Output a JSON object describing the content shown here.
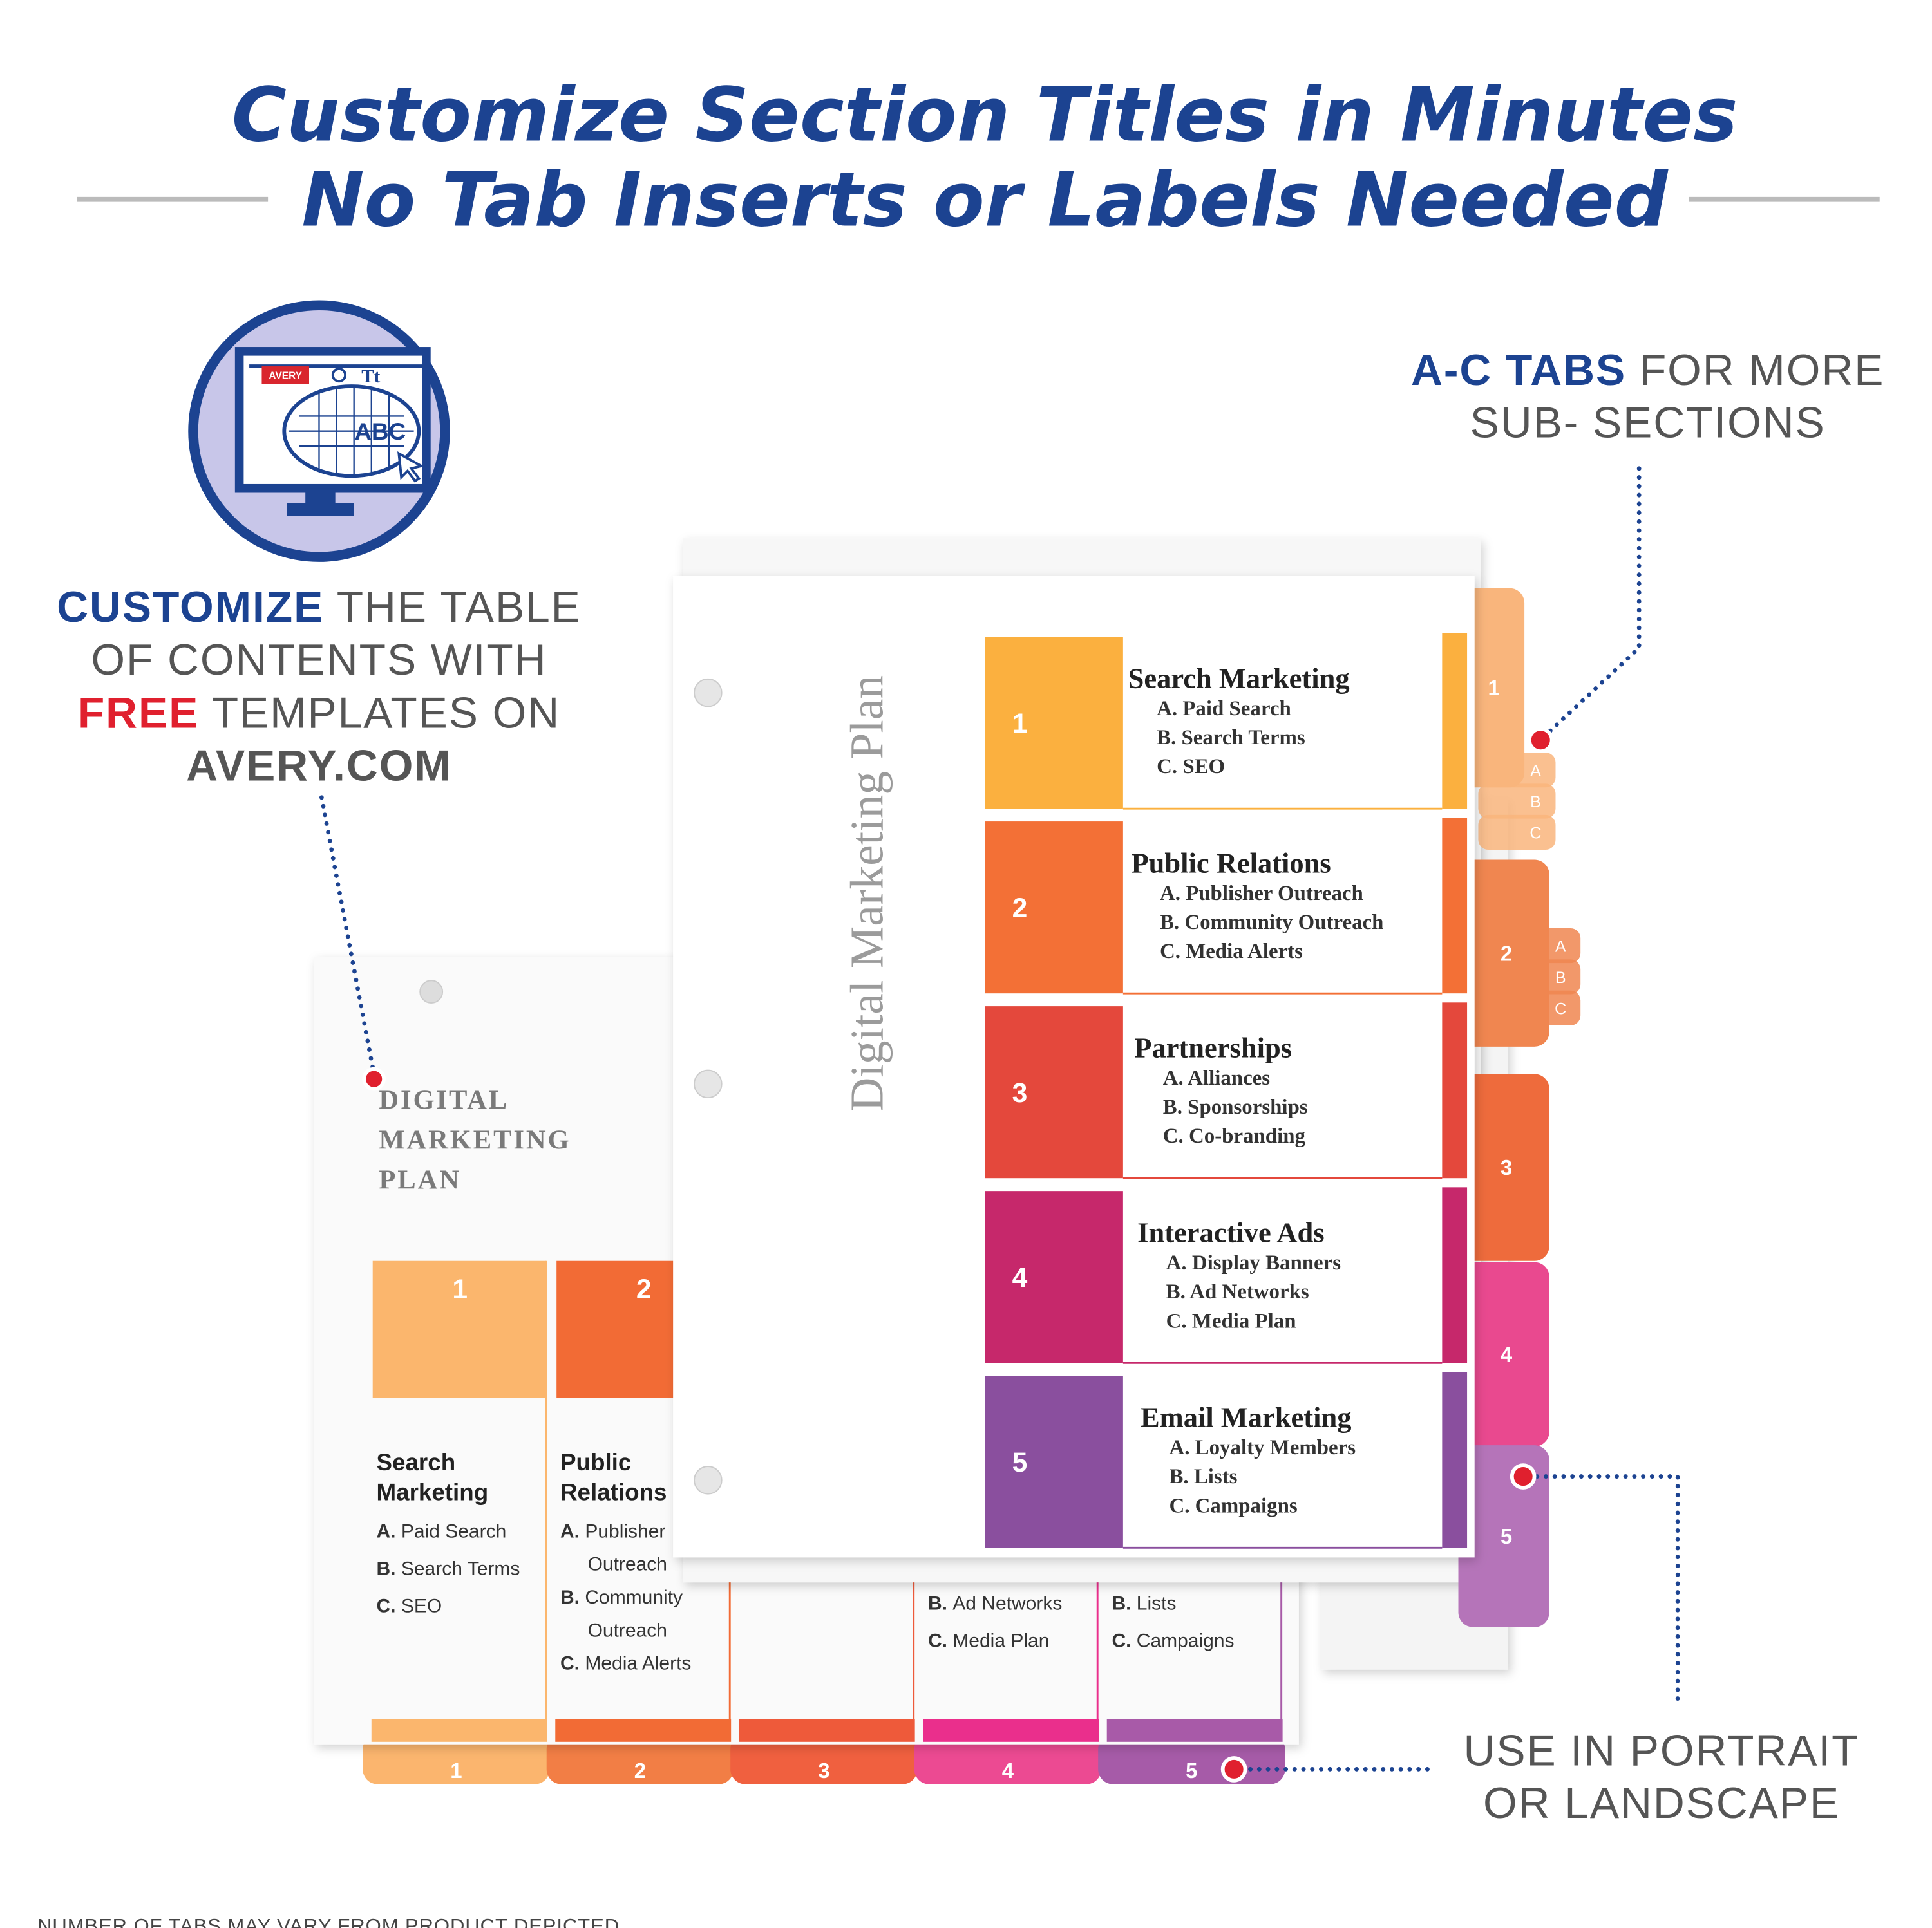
{
  "headline": {
    "line1": "Customize Section Titles in Minutes",
    "line2": "No Tab Inserts or Labels Needed"
  },
  "icon": {
    "logo": "AVERY",
    "type_icon": "Tt",
    "letters": "ABC"
  },
  "callout_customize": {
    "lines": [
      [
        {
          "text": "CUSTOMIZE",
          "emphasis": "blue"
        },
        {
          "text": " THE TABLE"
        }
      ],
      [
        {
          "text": "OF CONTENTS WITH"
        }
      ],
      [
        {
          "text": "FREE",
          "emphasis": "red"
        },
        {
          "text": " TEMPLATES ON"
        }
      ],
      [
        {
          "text": "AVERY.COM",
          "emphasis": "dark"
        }
      ]
    ]
  },
  "callout_tabs": {
    "lines": [
      [
        {
          "text": "A-C TABS",
          "emphasis": "blue"
        },
        {
          "text": " FOR MORE"
        }
      ],
      [
        {
          "text": "SUB- SECTIONS"
        }
      ]
    ]
  },
  "callout_orientation": {
    "lines": [
      [
        {
          "text": "USE IN PORTRAIT"
        }
      ],
      [
        {
          "text": "OR LANDSCAPE"
        }
      ]
    ]
  },
  "footnote": "NUMBER OF TABS MAY VARY FROM PRODUCT DEPICTED",
  "portrait_page": {
    "title": "Digital Marketing Plan",
    "sections": [
      {
        "number": 1,
        "color": "#fbb03f",
        "title": "Search Marketing",
        "items": [
          "A. Paid Search",
          "B. Search Terms",
          "C. SEO"
        ]
      },
      {
        "number": 2,
        "color": "#f37036",
        "title": "Public Relations",
        "items": [
          "A. Publisher Outreach",
          "B. Community Outreach",
          "C. Media Alerts"
        ]
      },
      {
        "number": 3,
        "color": "#e4483c",
        "title": "Partnerships",
        "items": [
          "A. Alliances",
          "B. Sponsorships",
          "C. Co-branding"
        ]
      },
      {
        "number": 4,
        "color": "#c6286b",
        "title": "Interactive Ads",
        "items": [
          "A. Display Banners",
          "B. Ad Networks",
          "C. Media Plan"
        ]
      },
      {
        "number": 5,
        "color": "#8a4f9e",
        "title": "Email Marketing",
        "items": [
          "A. Loyalty Members",
          "B. Lists",
          "C. Campaigns"
        ]
      }
    ],
    "tabs": [
      {
        "label": 1,
        "color": "#f9b57c",
        "subtabs": [
          "A",
          "B",
          "C"
        ]
      },
      {
        "label": 2,
        "color": "#f08650",
        "subtabs": [
          "A",
          "B",
          "C"
        ]
      },
      {
        "label": 3,
        "color": "#ee6b3c"
      },
      {
        "label": 4,
        "color": "#e9498f"
      },
      {
        "label": 5,
        "color": "#b574b9"
      }
    ]
  },
  "landscape_page": {
    "title_lines": [
      "DIGITAL",
      "MARKETING",
      "PLAN"
    ],
    "columns": [
      {
        "number": 1,
        "color": "#fbb66d",
        "title_lines": [
          "Search",
          "Marketing"
        ],
        "items": [
          {
            "letter": "A.",
            "text": "Paid Search"
          },
          {
            "letter": "B.",
            "text": "Search Terms"
          },
          {
            "letter": "C.",
            "text": "SEO"
          }
        ]
      },
      {
        "number": 2,
        "color": "#f26b35",
        "title_lines": [
          "Public",
          "Relations"
        ],
        "items": [
          {
            "letter": "A.",
            "text": "Publisher"
          },
          {
            "text": "Outreach"
          },
          {
            "letter": "B.",
            "text": "Community"
          },
          {
            "text": "Outreach"
          },
          {
            "letter": "C.",
            "text": "Media Alerts"
          }
        ]
      },
      {
        "color": "#ee5a3a"
      },
      {
        "color": "#ea2f8c",
        "items": [
          {
            "letter": "B.",
            "text": "Ad Networks"
          },
          {
            "letter": "C.",
            "text": "Media Plan"
          }
        ]
      },
      {
        "color": "#a85aa8",
        "items": [
          {
            "letter": "B.",
            "text": "Lists"
          },
          {
            "letter": "C.",
            "text": "Campaigns"
          }
        ]
      }
    ],
    "tabs": [
      {
        "label": 1,
        "color": "#fbb56e"
      },
      {
        "label": 2,
        "color": "#f27e45"
      },
      {
        "label": 3,
        "color": "#f0603f"
      },
      {
        "label": 4,
        "color": "#ec4a92"
      },
      {
        "label": 5,
        "color": "#a65ba8"
      }
    ]
  }
}
